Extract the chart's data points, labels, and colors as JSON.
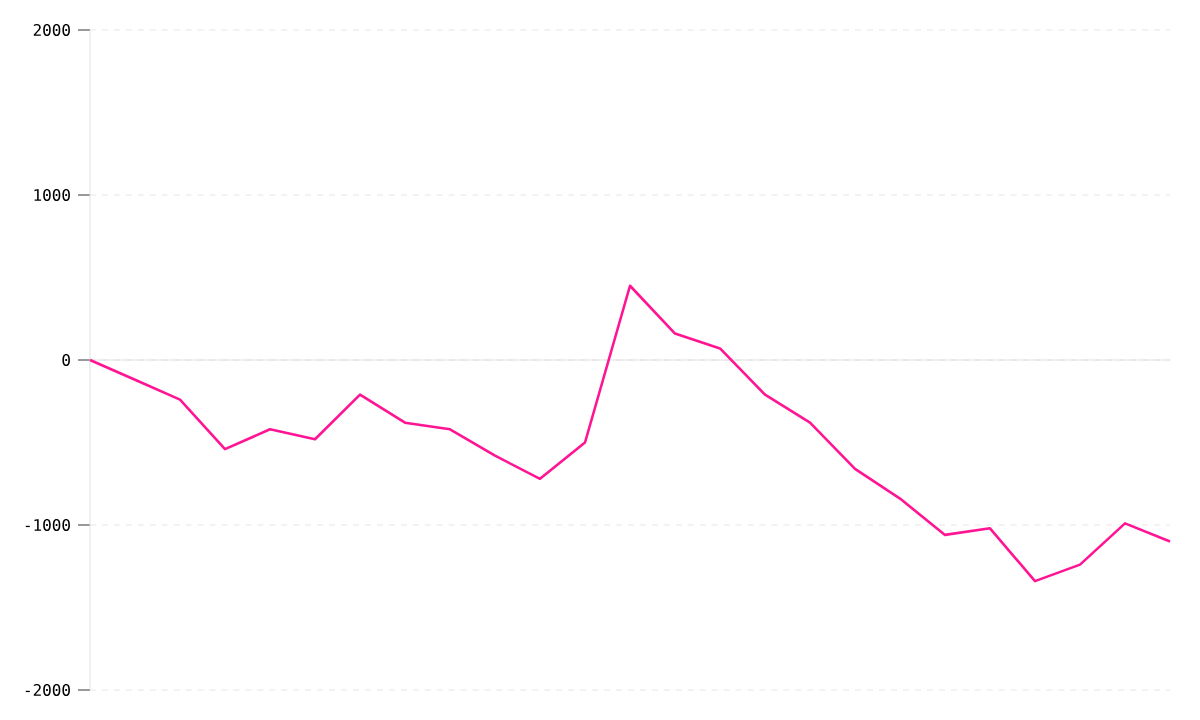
{
  "chart_data": {
    "type": "line",
    "categories": [
      null,
      null,
      null,
      null,
      null,
      null,
      null,
      null,
      null,
      null,
      null,
      null,
      null,
      null,
      null,
      null,
      null,
      null,
      null,
      null,
      null,
      null,
      null,
      null,
      null
    ],
    "series": [
      {
        "color": "#ff1493",
        "values": [
          0,
          -120,
          -240,
          -540,
          -420,
          -480,
          -210,
          -380,
          -420,
          -580,
          -720,
          -500,
          450,
          160,
          70,
          -210,
          -380,
          -660,
          -840,
          -1060,
          -1020,
          -1340,
          -1240,
          -990,
          -1100
        ]
      }
    ],
    "ylim": [
      -2000,
      2000
    ],
    "yticks": [
      -2000,
      -1000,
      0,
      1000,
      2000
    ],
    "grid": "y",
    "marker": "none",
    "line_style": "solid"
  }
}
